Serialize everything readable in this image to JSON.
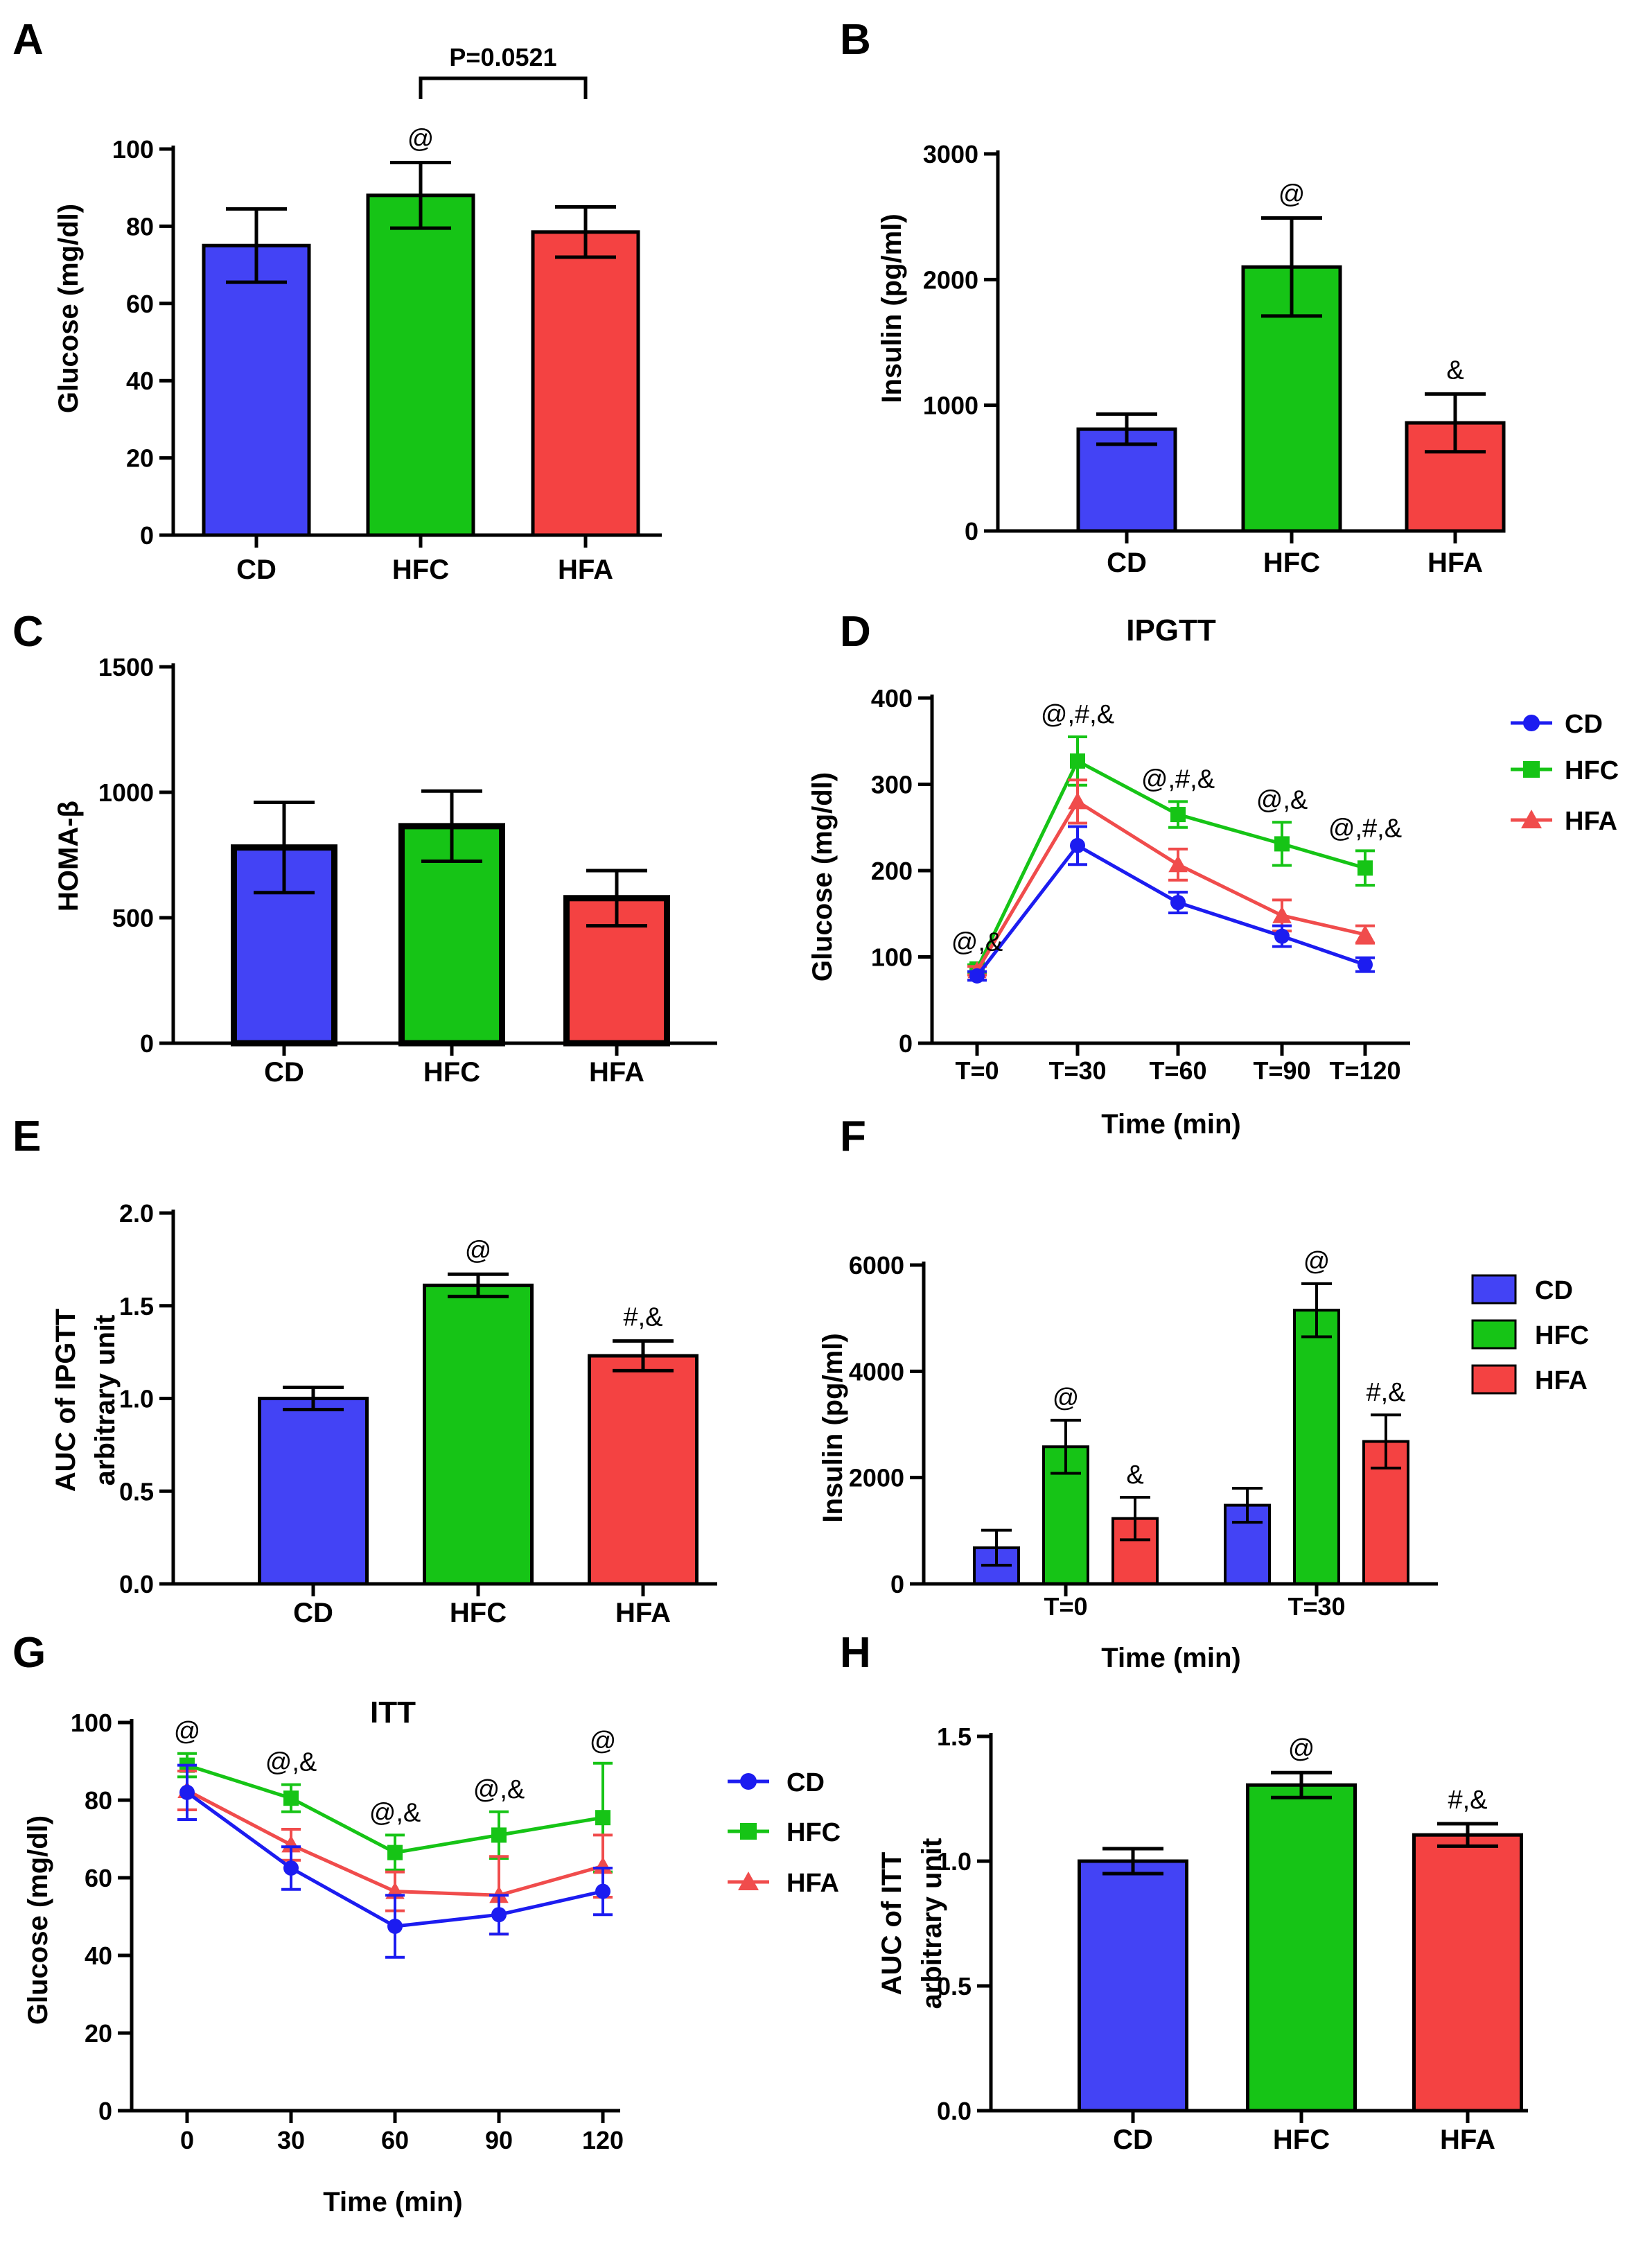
{
  "colors": {
    "CD": "#4343f5",
    "CD_line": "#1c1cf0",
    "HFC": "#16c416",
    "HFA": "#f44242",
    "HFA_line": "#f04c4c"
  },
  "chart_data": [
    {
      "panel": "A",
      "type": "bar",
      "title": "",
      "xlabel": "",
      "ylabel": "Glucose (mg/dl)",
      "ylim": [
        0,
        100
      ],
      "yticks": [
        0,
        20,
        40,
        60,
        80,
        100
      ],
      "categories": [
        "CD",
        "HFC",
        "HFA"
      ],
      "values": [
        75,
        88,
        78.5
      ],
      "errors": [
        9.5,
        8.5,
        6.5
      ],
      "annotations": [
        "",
        "@",
        ""
      ],
      "bracket": {
        "from": "HFC",
        "to": "HFA",
        "label": "P=0.0521"
      }
    },
    {
      "panel": "B",
      "type": "bar",
      "title": "",
      "xlabel": "",
      "ylabel": "Insulin (pg/ml)",
      "ylim": [
        0,
        3000
      ],
      "yticks": [
        0,
        1000,
        2000,
        3000
      ],
      "categories": [
        "CD",
        "HFC",
        "HFA"
      ],
      "values": [
        810,
        2100,
        860
      ],
      "errors": [
        120,
        390,
        230
      ],
      "annotations": [
        "",
        "@",
        "&"
      ]
    },
    {
      "panel": "C",
      "type": "bar",
      "title": "",
      "xlabel": "",
      "ylabel": "HOMA-β",
      "ylim": [
        0,
        1500
      ],
      "yticks": [
        0,
        500,
        1000,
        1500
      ],
      "categories": [
        "CD",
        "HFC",
        "HFA"
      ],
      "values": [
        780,
        865,
        578
      ],
      "errors": [
        180,
        140,
        110
      ],
      "annotations": [
        "",
        "",
        ""
      ]
    },
    {
      "panel": "D",
      "type": "line",
      "title": "IPGTT",
      "xlabel": "Time (min)",
      "ylabel": "Glucose (mg/dl)",
      "ylim": [
        0,
        400
      ],
      "yticks": [
        0,
        100,
        200,
        300,
        400
      ],
      "x": [
        "T=0",
        "T=30",
        "T=60",
        "T=90",
        "T=120"
      ],
      "series": [
        {
          "name": "CD",
          "values": [
            78,
            229,
            163,
            124,
            91
          ],
          "errors": [
            5,
            22,
            12,
            12,
            8
          ]
        },
        {
          "name": "HFC",
          "values": [
            86,
            327,
            265,
            231,
            203
          ],
          "errors": [
            5,
            28,
            15,
            25,
            20
          ]
        },
        {
          "name": "HFA",
          "values": [
            84,
            280,
            207,
            148,
            126
          ],
          "errors": [
            5,
            25,
            18,
            18,
            10
          ]
        }
      ],
      "annotations": [
        "@,&",
        "@,#,&",
        "@,#,&",
        "@,&",
        "@,#,&"
      ],
      "legend": "right"
    },
    {
      "panel": "E",
      "type": "bar",
      "title": "",
      "xlabel": "",
      "ylabel": "AUC of IPGTT",
      "ylabel2": "arbitrary unit",
      "ylim": [
        0,
        2.0
      ],
      "yticks": [
        "0.0",
        "0.5",
        "1.0",
        "1.5",
        "2.0"
      ],
      "categories": [
        "CD",
        "HFC",
        "HFA"
      ],
      "values": [
        1.0,
        1.61,
        1.23
      ],
      "errors": [
        0.06,
        0.06,
        0.08
      ],
      "annotations": [
        "",
        "@",
        "#,&"
      ]
    },
    {
      "panel": "F",
      "type": "bar",
      "title": "",
      "xlabel": "Time (min)",
      "ylabel": "Insulin (pg/ml)",
      "ylim": [
        0,
        6000
      ],
      "yticks": [
        0,
        2000,
        4000,
        6000
      ],
      "categories": [
        "T=0",
        "T=30"
      ],
      "series": [
        {
          "name": "CD",
          "values": [
            680,
            1480
          ],
          "errors": [
            330,
            320
          ]
        },
        {
          "name": "HFC",
          "values": [
            2580,
            5150
          ],
          "errors": [
            500,
            500
          ]
        },
        {
          "name": "HFA",
          "values": [
            1230,
            2680
          ],
          "errors": [
            400,
            500
          ]
        }
      ],
      "annotations": [
        [
          "",
          "@",
          "&"
        ],
        [
          "",
          "@",
          "#,&"
        ]
      ],
      "legend": "right"
    },
    {
      "panel": "G",
      "type": "line",
      "title": "ITT",
      "xlabel": "Time (min)",
      "ylabel": "Glucose (mg/dl)",
      "ylim": [
        0,
        100
      ],
      "yticks": [
        0,
        20,
        40,
        60,
        80,
        100
      ],
      "x": [
        0,
        30,
        60,
        90,
        120
      ],
      "series": [
        {
          "name": "CD",
          "values": [
            82,
            62.5,
            47.5,
            50.5,
            56.5
          ],
          "errors": [
            7,
            5.5,
            8,
            5,
            6
          ]
        },
        {
          "name": "HFC",
          "values": [
            89,
            80.5,
            66.5,
            71,
            75.5
          ],
          "errors": [
            3,
            3.5,
            4.5,
            6,
            14
          ]
        },
        {
          "name": "HFA",
          "values": [
            82.5,
            68.5,
            56.5,
            55.5,
            63
          ],
          "errors": [
            5,
            4,
            5,
            10,
            8
          ]
        }
      ],
      "annotations": [
        "@",
        "@,&",
        "@,&",
        "@,&",
        "@"
      ],
      "legend": "right"
    },
    {
      "panel": "H",
      "type": "bar",
      "title": "",
      "xlabel": "",
      "ylabel": "AUC of ITT",
      "ylabel2": "arbitrary unit",
      "ylim": [
        0,
        1.5
      ],
      "yticks": [
        "0.0",
        "0.5",
        "1.0",
        "1.5"
      ],
      "categories": [
        "CD",
        "HFC",
        "HFA"
      ],
      "values": [
        1.0,
        1.305,
        1.105
      ],
      "errors": [
        0.05,
        0.05,
        0.045
      ],
      "annotations": [
        "",
        "@",
        "#,&"
      ]
    }
  ]
}
